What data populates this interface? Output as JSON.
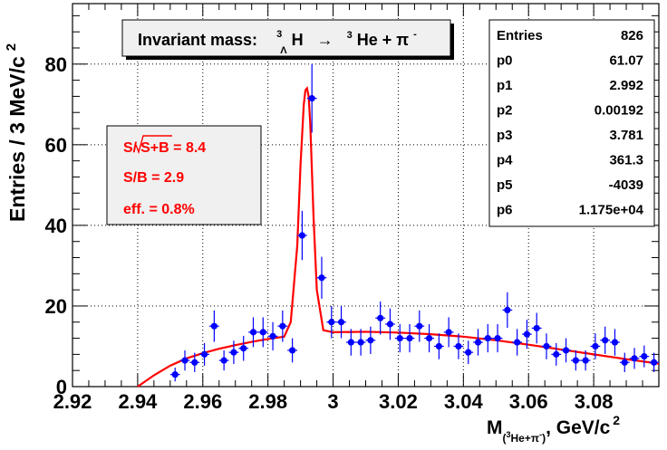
{
  "chart_data": {
    "type": "scatter",
    "title": "",
    "title_box": {
      "prefix": "Invariant mass:",
      "hyp_super": "3",
      "hyp_sub": "Λ",
      "hyp_main": "H",
      "arrow": "→",
      "he_super": "3",
      "he_main": "He + π",
      "pi_super": "-"
    },
    "xlabel": {
      "main": "M",
      "sub_paren_open": "(",
      "sub_super": "3",
      "sub_main": "He+π",
      "sub_minus": "-",
      "sub_paren_close": ")",
      "units": ", GeV/c",
      "units_super": "2"
    },
    "ylabel": {
      "main": "Entries / 3 MeV/c",
      "super": "2"
    },
    "xlim": [
      2.92,
      3.1
    ],
    "ylim": [
      0,
      95
    ],
    "x_ticks": [
      2.92,
      2.94,
      2.96,
      2.98,
      3.0,
      3.02,
      3.04,
      3.06,
      3.08
    ],
    "x_tick_labels": [
      "2.92",
      "2.94",
      "2.96",
      "2.98",
      "3",
      "3.02",
      "3.04",
      "3.06",
      "3.08"
    ],
    "y_ticks": [
      0,
      20,
      40,
      60,
      80
    ],
    "y_tick_labels": [
      "0",
      "20",
      "40",
      "60",
      "80"
    ],
    "grid": true,
    "series": [
      {
        "marker": "circle",
        "color": "#0000ff",
        "x": [
          2.9515,
          2.9545,
          2.9575,
          2.9605,
          2.9635,
          2.9665,
          2.9695,
          2.9725,
          2.9755,
          2.9785,
          2.9815,
          2.9845,
          2.9875,
          2.9905,
          2.9935,
          2.9965,
          2.9995,
          3.0025,
          3.0055,
          3.0085,
          3.0115,
          3.0145,
          3.0175,
          3.0205,
          3.0235,
          3.0265,
          3.0295,
          3.0325,
          3.0355,
          3.0385,
          3.0415,
          3.0445,
          3.0475,
          3.0505,
          3.0535,
          3.0565,
          3.0595,
          3.0625,
          3.0655,
          3.0685,
          3.0715,
          3.0745,
          3.0775,
          3.0805,
          3.0835,
          3.0865,
          3.0895,
          3.0925,
          3.0955,
          3.0985
        ],
        "y": [
          3,
          6.5,
          6,
          8,
          15,
          6.5,
          8.5,
          9.5,
          13.5,
          13.5,
          12.5,
          15,
          9,
          37.5,
          71.5,
          27,
          16,
          16,
          11,
          11,
          11.5,
          17,
          15.5,
          12,
          12,
          15,
          12,
          10,
          13.5,
          10,
          8.5,
          11,
          12,
          12,
          19,
          11,
          13,
          14.5,
          10,
          8,
          9,
          6.5,
          6.5,
          10,
          11.5,
          11,
          6,
          7,
          7.5,
          6
        ],
        "yerr": [
          1.7,
          2.5,
          2.4,
          2.8,
          3.9,
          2.5,
          2.9,
          3.1,
          3.7,
          3.7,
          3.5,
          3.9,
          3.0,
          6.1,
          8.5,
          5.2,
          4.0,
          4.0,
          3.3,
          3.3,
          3.4,
          4.1,
          3.9,
          3.5,
          3.5,
          3.9,
          3.5,
          3.2,
          3.7,
          3.2,
          2.9,
          3.3,
          3.5,
          3.5,
          4.4,
          3.3,
          3.6,
          3.8,
          3.2,
          2.8,
          3.0,
          2.5,
          2.5,
          3.2,
          3.4,
          3.3,
          2.4,
          2.6,
          2.7,
          2.4
        ]
      },
      {
        "type": "line",
        "color": "#ff0000",
        "x": [
          2.94,
          2.945,
          2.95,
          2.955,
          2.96,
          2.965,
          2.97,
          2.975,
          2.98,
          2.985,
          2.987,
          2.989,
          2.99,
          2.991,
          2.9915,
          2.992,
          2.9925,
          2.993,
          2.994,
          2.995,
          2.997,
          3.0,
          3.01,
          3.02,
          3.03,
          3.04,
          3.05,
          3.06,
          3.07,
          3.08,
          3.09,
          3.1
        ],
        "y": [
          0,
          2.8,
          5.2,
          7,
          8.3,
          9.4,
          10.3,
          11.1,
          11.8,
          12.4,
          16,
          35,
          55,
          70,
          73.5,
          74,
          72,
          65,
          42,
          24,
          14,
          13.5,
          13.6,
          13.4,
          13,
          12.4,
          11.5,
          10.4,
          9.2,
          8,
          6.8,
          5.7
        ]
      }
    ],
    "stats_box": {
      "rows": [
        {
          "label": "Entries",
          "value": "826"
        },
        {
          "label": "p0",
          "value": "61.07"
        },
        {
          "label": "p1",
          "value": "2.992"
        },
        {
          "label": "p2",
          "value": "0.00192"
        },
        {
          "label": "p3",
          "value": "3.781"
        },
        {
          "label": "p4",
          "value": "361.3"
        },
        {
          "label": "p5",
          "value": "-4039"
        },
        {
          "label": "p6",
          "value": "1.175e+04"
        }
      ]
    },
    "annotation_box": {
      "sb_sqrt_prefix": "S/",
      "sb_sqrt_content": "S+B",
      "sb_sqrt_value": " = 8.4",
      "sb_ratio": "S/B = 2.9",
      "eff": "eff. = 0.8%"
    }
  }
}
